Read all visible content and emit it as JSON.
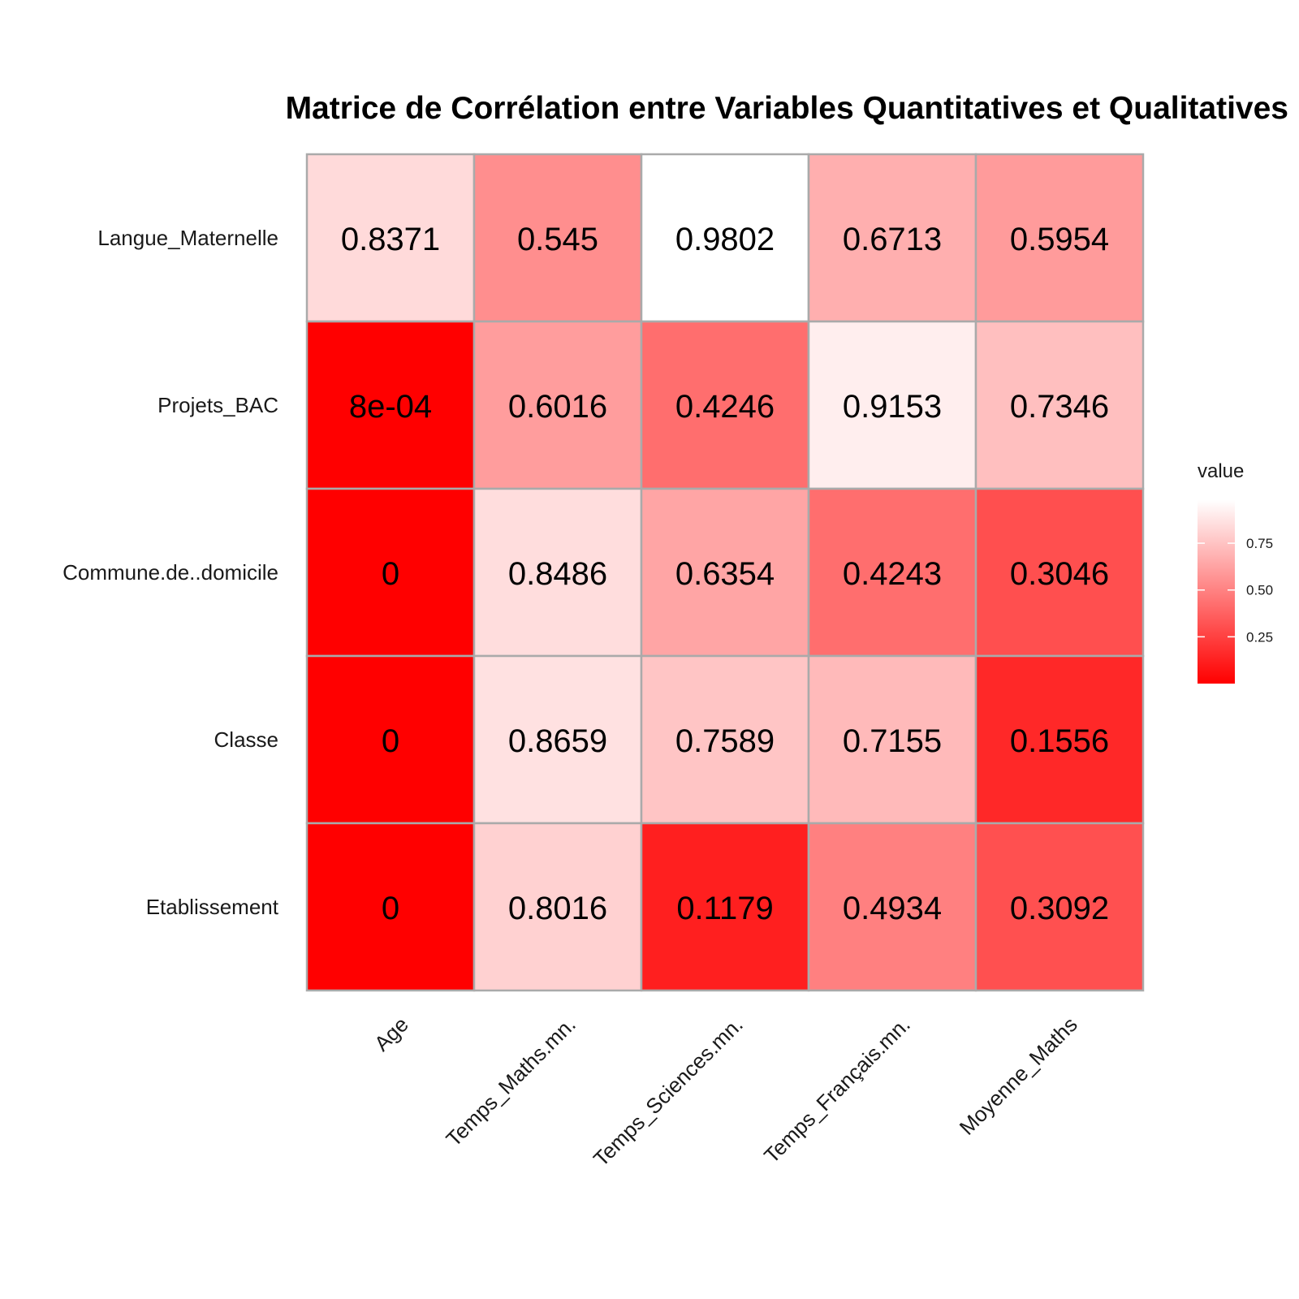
{
  "chart_data": {
    "type": "heatmap",
    "title": "Matrice de Corrélation entre Variables Quantitatives et Qualitatives",
    "x_categories": [
      "Age",
      "Temps_Maths.mn.",
      "Temps_Sciences.mn.",
      "Temps_Français.mn.",
      "Moyenne_Maths"
    ],
    "y_categories": [
      "Langue_Maternelle",
      "Projets_BAC",
      "Commune.de..domicile",
      "Classe",
      "Etablissement"
    ],
    "values": [
      [
        0.8371,
        0.545,
        0.9802,
        0.6713,
        0.5954
      ],
      [
        0.0008,
        0.6016,
        0.4246,
        0.9153,
        0.7346
      ],
      [
        0,
        0.8486,
        0.6354,
        0.4243,
        0.3046
      ],
      [
        0,
        0.8659,
        0.7589,
        0.7155,
        0.1556
      ],
      [
        0,
        0.8016,
        0.1179,
        0.4934,
        0.3092
      ]
    ],
    "value_labels": [
      [
        "0.8371",
        "0.545",
        "0.9802",
        "0.6713",
        "0.5954"
      ],
      [
        "8e-04",
        "0.6016",
        "0.4246",
        "0.9153",
        "0.7346"
      ],
      [
        "0",
        "0.8486",
        "0.6354",
        "0.4243",
        "0.3046"
      ],
      [
        "0",
        "0.8659",
        "0.7589",
        "0.7155",
        "0.1556"
      ],
      [
        "0",
        "0.8016",
        "0.1179",
        "0.4934",
        "0.3092"
      ]
    ],
    "color_low": "#FF0000",
    "color_high": "#FFFFFF",
    "tile_border_color": "#AAAAAA",
    "value_range": [
      0,
      0.9802
    ],
    "legend": {
      "title": "value",
      "ticks": [
        0.25,
        0.5,
        0.75
      ],
      "tick_labels": [
        "0.25",
        "0.50",
        "0.75"
      ],
      "placement": "right"
    }
  }
}
